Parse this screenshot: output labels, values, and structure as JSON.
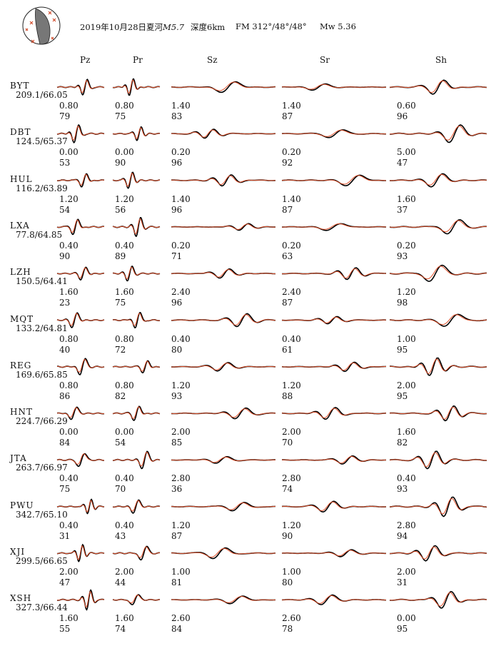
{
  "header": {
    "title_prefix": "2019年10月28日夏河",
    "magnitude": "M5.7",
    "depth": "深度6km",
    "focal_mechanism": "FM  312°/48°/48°",
    "moment_magnitude": "Mw 5.36"
  },
  "colors": {
    "observed": "#000000",
    "synthetic": "#e0502a",
    "beachball_fill": "#777777"
  },
  "columns": [
    "Pz",
    "Pr",
    "Sz",
    "Sr",
    "Sh"
  ],
  "stations": [
    {
      "name": "BYT",
      "dist_az": "209.1/66.05",
      "scale": [
        "0.80",
        "0.80",
        "1.40",
        "1.40",
        "0.60"
      ],
      "cc": [
        "79",
        "75",
        "83",
        "87",
        "96"
      ]
    },
    {
      "name": "DBT",
      "dist_az": "124.5/65.37",
      "scale": [
        "0.00",
        "0.00",
        "0.20",
        "0.20",
        "5.00"
      ],
      "cc": [
        "53",
        "90",
        "96",
        "92",
        "47"
      ]
    },
    {
      "name": "HUL",
      "dist_az": "116.2/63.89",
      "scale": [
        "1.20",
        "1.20",
        "1.40",
        "1.40",
        "1.60"
      ],
      "cc": [
        "54",
        "56",
        "96",
        "87",
        "37"
      ]
    },
    {
      "name": "LXA",
      "dist_az": "77.8/64.85",
      "scale": [
        "0.40",
        "0.40",
        "0.20",
        "0.20",
        "0.20"
      ],
      "cc": [
        "90",
        "89",
        "71",
        "63",
        "93"
      ]
    },
    {
      "name": "LZH",
      "dist_az": "150.5/64.41",
      "scale": [
        "1.60",
        "1.60",
        "2.40",
        "2.40",
        "1.20"
      ],
      "cc": [
        "23",
        "75",
        "96",
        "87",
        "98"
      ]
    },
    {
      "name": "MQT",
      "dist_az": "133.2/64.81",
      "scale": [
        "0.80",
        "0.80",
        "0.40",
        "0.40",
        "1.00"
      ],
      "cc": [
        "40",
        "72",
        "80",
        "61",
        "95"
      ]
    },
    {
      "name": "REG",
      "dist_az": "169.6/65.85",
      "scale": [
        "0.80",
        "0.80",
        "1.20",
        "1.20",
        "2.00"
      ],
      "cc": [
        "86",
        "82",
        "93",
        "88",
        "95"
      ]
    },
    {
      "name": "HNT",
      "dist_az": "224.7/66.29",
      "scale": [
        "0.00",
        "0.00",
        "2.00",
        "2.00",
        "1.60"
      ],
      "cc": [
        "84",
        "54",
        "85",
        "70",
        "82"
      ]
    },
    {
      "name": "JTA",
      "dist_az": "263.7/66.97",
      "scale": [
        "0.40",
        "0.40",
        "2.80",
        "2.80",
        "0.40"
      ],
      "cc": [
        "75",
        "70",
        "36",
        "74",
        "93"
      ]
    },
    {
      "name": "PWU",
      "dist_az": "342.7/65.10",
      "scale": [
        "0.40",
        "0.40",
        "1.20",
        "1.20",
        "2.80"
      ],
      "cc": [
        "31",
        "43",
        "87",
        "90",
        "94"
      ]
    },
    {
      "name": "XJI",
      "dist_az": "299.5/66.65",
      "scale": [
        "2.00",
        "2.00",
        "1.00",
        "1.00",
        "2.00"
      ],
      "cc": [
        "47",
        "44",
        "81",
        "80",
        "31"
      ]
    },
    {
      "name": "XSH",
      "dist_az": "327.3/66.44",
      "scale": [
        "1.60",
        "1.60",
        "2.60",
        "2.60",
        "0.00"
      ],
      "cc": [
        "55",
        "74",
        "84",
        "78",
        "95"
      ]
    }
  ]
}
